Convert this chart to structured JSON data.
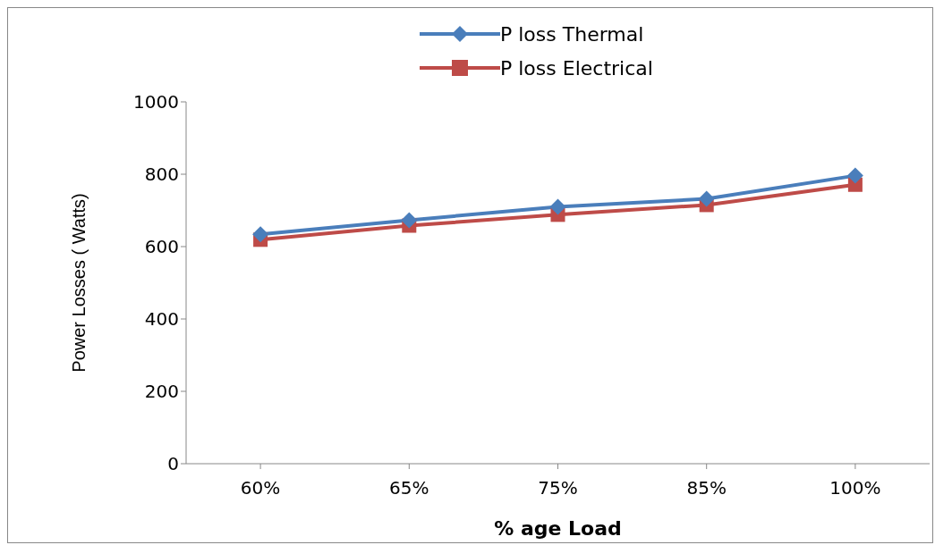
{
  "chart_data": {
    "type": "line",
    "xlabel": "% age Load",
    "ylabel": "Power Losses ( Watts)",
    "categories": [
      "60%",
      "65%",
      "75%",
      "85%",
      "100%"
    ],
    "series": [
      {
        "name": "P loss Thermal",
        "color": "#4a7ebb",
        "marker": "diamond",
        "values": [
          634,
          673,
          710,
          732,
          796
        ]
      },
      {
        "name": "P loss Electrical",
        "color": "#be4b48",
        "marker": "square",
        "values": [
          619,
          658,
          688,
          715,
          771
        ]
      }
    ],
    "ylim": [
      0,
      1000
    ],
    "yticks": [
      0,
      200,
      400,
      600,
      800,
      1000
    ],
    "grid": false,
    "legend": "top",
    "line_style": "solid"
  }
}
